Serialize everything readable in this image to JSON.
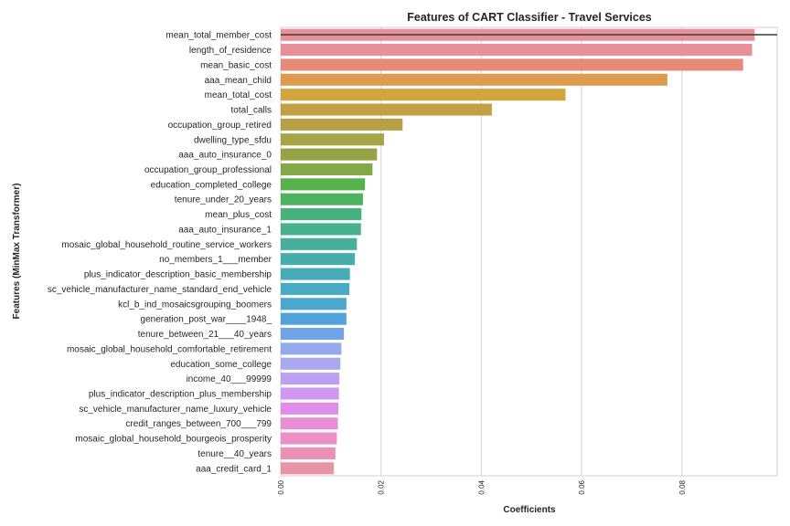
{
  "chart_data": {
    "type": "bar",
    "orientation": "horizontal",
    "title": "Features of CART Classifier - Travel Services",
    "xlabel": "Coefficients",
    "ylabel": "Features (MinMax Transformer)",
    "xlim": [
      0,
      0.099
    ],
    "xticks": [
      "0.00",
      "0.02",
      "0.04",
      "0.06",
      "0.08"
    ],
    "grid": "vertical",
    "categories": [
      "mean_total_member_cost",
      "length_of_residence",
      "mean_basic_cost",
      "aaa_mean_child",
      "mean_total_cost",
      "total_calls",
      "occupation_group_retired",
      "dwelling_type_sfdu",
      "aaa_auto_insurance_0",
      "occupation_group_professional",
      "education_completed_college",
      "tenure_under_20_years",
      "mean_plus_cost",
      "aaa_auto_insurance_1",
      "mosaic_global_household_routine_service_workers",
      "no_members_1___member",
      "plus_indicator_description_basic_membership",
      "sc_vehicle_manufacturer_name_standard_end_vehicle",
      "kcl_b_ind_mosaicsgrouping_boomers",
      "generation_post_war____1948_",
      "tenure_between_21___40_years",
      "mosaic_global_household_comfortable_retirement",
      "education_some_college",
      "income_40___99999",
      "plus_indicator_description_plus_membership",
      "sc_vehicle_manufacturer_name_luxury_vehicle",
      "credit_ranges_between_700___799",
      "mosaic_global_household_bourgeois_prosperity",
      "tenure__40_years",
      "aaa_credit_card_1"
    ],
    "values": [
      0.0945,
      0.094,
      0.0922,
      0.0771,
      0.0568,
      0.0421,
      0.0243,
      0.0206,
      0.0192,
      0.0183,
      0.0168,
      0.0164,
      0.0161,
      0.016,
      0.0152,
      0.0148,
      0.0138,
      0.0137,
      0.0131,
      0.0131,
      0.0126,
      0.0121,
      0.0119,
      0.0117,
      0.0116,
      0.0115,
      0.0114,
      0.0112,
      0.0109,
      0.0106
    ],
    "colors": [
      "#e8909a",
      "#e8909a",
      "#e78a78",
      "#de9a4f",
      "#d2a53f",
      "#c3a142",
      "#b5a143",
      "#a6a444",
      "#96a345",
      "#85a846",
      "#56b24a",
      "#4db35f",
      "#48b27e",
      "#47b18e",
      "#46b09c",
      "#45aeaa",
      "#46adb8",
      "#48abc4",
      "#4aa8cf",
      "#50a3da",
      "#6fa4e6",
      "#94aaee",
      "#a9a7ef",
      "#bb9ff0",
      "#d097f0",
      "#df8ceb",
      "#e88ed5",
      "#ea90c6",
      "#ea91b5",
      "#e993a6"
    ]
  }
}
